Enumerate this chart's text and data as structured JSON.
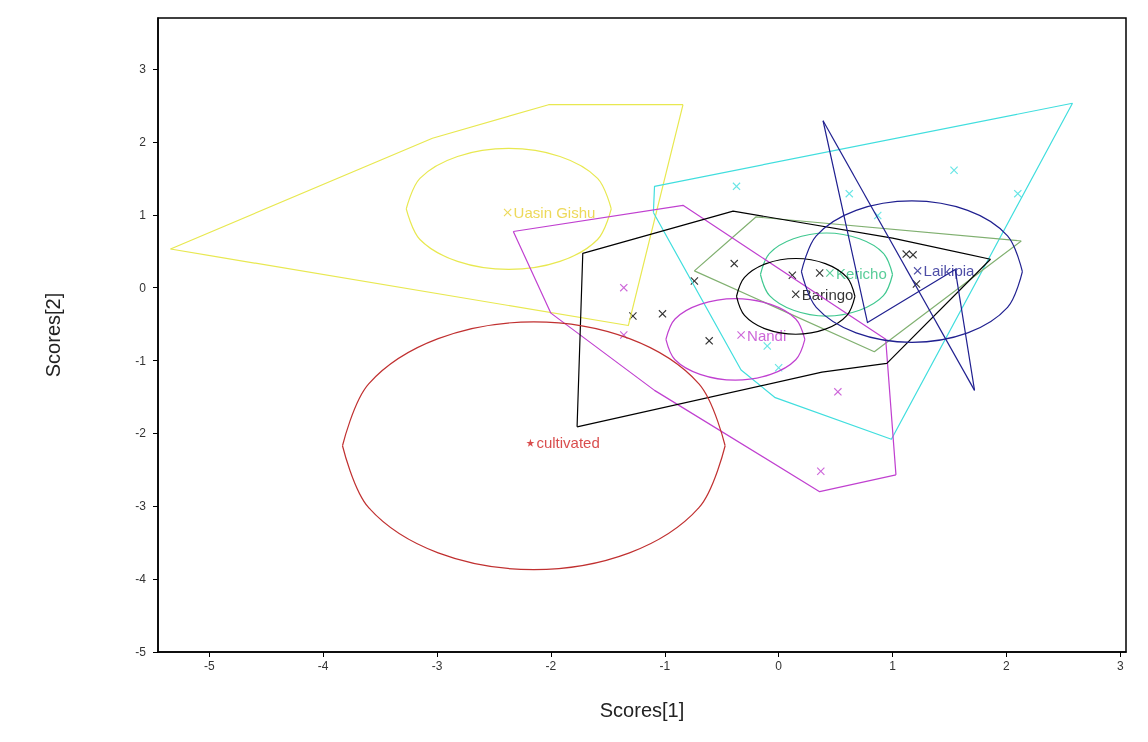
{
  "chart_data": {
    "type": "scatter",
    "xlabel": "Scores[1]",
    "ylabel": "Scores[2]",
    "xlim": [
      -5.45,
      3.05
    ],
    "ylim": [
      -5,
      3.7
    ],
    "xticks": [
      -5,
      -4,
      -3,
      -2,
      -1,
      0,
      1,
      2,
      3
    ],
    "yticks": [
      -5,
      -4,
      -3,
      -2,
      -1,
      0,
      1,
      2,
      3
    ],
    "grid": false,
    "legend": false,
    "series": [
      {
        "type": "line",
        "color": "#e8e850",
        "marker": "none",
        "x": [
          -5.34,
          -3.04,
          -2.02,
          -0.84
        ],
        "values": [
          0.53,
          2.05,
          2.51,
          2.51
        ]
      },
      {
        "type": "line",
        "color": "#e8e850",
        "marker": "none",
        "x": [
          -5.34,
          -1.32,
          -0.84
        ],
        "values": [
          0.53,
          -0.52,
          2.51
        ]
      },
      {
        "type": "line",
        "color": "#e8e850",
        "marker": "none",
        "x": [
          -3.27,
          -3.15,
          -2.82,
          -2.37,
          -1.92,
          -1.59,
          -1.47,
          null,
          -3.27,
          -3.15,
          -2.82,
          -2.37,
          -1.92,
          -1.59,
          -1.47
        ],
        "values": [
          1.08,
          1.5,
          1.8,
          1.91,
          1.8,
          1.5,
          1.08,
          null,
          1.08,
          0.66,
          0.36,
          0.25,
          0.36,
          0.66,
          1.08
        ]
      },
      {
        "name": "Uasin Gishu",
        "color": "#e8d030",
        "marker": "cross",
        "x": [
          -2.38
        ],
        "values": [
          1.03
        ]
      },
      {
        "type": "line",
        "color": "#40dede",
        "marker": "none",
        "x": [
          -1.1,
          -1.09,
          2.58
        ],
        "values": [
          1.03,
          1.39,
          2.53
        ]
      },
      {
        "type": "line",
        "color": "#40dede",
        "marker": "none",
        "x": [
          -1.1,
          -0.33,
          -0.03,
          0.99,
          2.58
        ],
        "values": [
          1.03,
          -1.13,
          -1.51,
          -2.08,
          2.53
        ]
      },
      {
        "color": "#40dede",
        "marker": "cross",
        "x": [
          -0.37,
          1.54,
          2.1,
          0.62,
          0.87,
          -0.1,
          0.0
        ],
        "values": [
          1.39,
          1.61,
          1.29,
          1.29,
          0.99,
          -0.8,
          -1.1
        ]
      },
      {
        "type": "line",
        "color": "#80b070",
        "marker": "none",
        "x": [
          -0.74,
          -0.2,
          2.13
        ],
        "values": [
          0.23,
          0.97,
          0.64
        ]
      },
      {
        "type": "line",
        "color": "#80b070",
        "marker": "none",
        "x": [
          -0.74,
          0.84,
          2.13
        ],
        "values": [
          0.23,
          -0.88,
          0.64
        ]
      },
      {
        "type": "line",
        "color": "#40c890",
        "marker": "none",
        "x": [
          -0.16,
          -0.08,
          0.13,
          0.42,
          0.71,
          0.92,
          1.0,
          null,
          -0.16,
          -0.08,
          0.13,
          0.42,
          0.71,
          0.92,
          1.0
        ],
        "values": [
          0.18,
          0.47,
          0.67,
          0.75,
          0.67,
          0.47,
          0.18,
          null,
          0.18,
          -0.11,
          -0.31,
          -0.39,
          -0.31,
          -0.11,
          0.18
        ]
      },
      {
        "name": "Kericho",
        "color": "#30c080",
        "marker": "cross",
        "x": [
          0.45
        ],
        "values": [
          0.2
        ]
      },
      {
        "type": "line",
        "color": "#c040d0",
        "marker": "none",
        "x": [
          -2.33,
          -0.84,
          0.94,
          1.03
        ],
        "values": [
          0.77,
          1.13,
          -0.71,
          -2.57
        ]
      },
      {
        "type": "line",
        "color": "#c040d0",
        "marker": "none",
        "x": [
          -2.33,
          -2.0,
          -1.09,
          0.36,
          1.03
        ],
        "values": [
          0.77,
          -0.35,
          -1.41,
          -2.8,
          -2.57
        ]
      },
      {
        "type": "line",
        "color": "#c040d0",
        "marker": "none",
        "x": [
          -0.99,
          -0.91,
          -0.69,
          -0.38,
          -0.07,
          0.15,
          0.23,
          null,
          -0.99,
          -0.91,
          -0.69,
          -0.38,
          -0.07,
          0.15,
          0.23
        ],
        "values": [
          -0.71,
          -0.43,
          -0.23,
          -0.15,
          -0.23,
          -0.43,
          -0.71,
          null,
          -0.71,
          -0.99,
          -1.19,
          -1.27,
          -1.19,
          -0.99,
          -0.71
        ]
      },
      {
        "color": "#c040d0",
        "marker": "cross",
        "x": [
          -1.36,
          0.37,
          0.52,
          -1.36
        ],
        "values": [
          0.0,
          -2.52,
          -1.43,
          -0.65
        ]
      },
      {
        "name": "Nandi",
        "color": "#c040d0",
        "marker": "cross",
        "x": [
          -0.33
        ],
        "values": [
          -0.65
        ]
      },
      {
        "type": "line",
        "color": "#000000",
        "marker": "none",
        "x": [
          -1.77,
          -1.72,
          -0.4,
          1.0,
          1.86
        ],
        "values": [
          -1.91,
          0.47,
          1.05,
          0.68,
          0.39
        ]
      },
      {
        "type": "line",
        "color": "#000000",
        "marker": "none",
        "x": [
          -1.77,
          0.38,
          0.95,
          1.86
        ],
        "values": [
          -1.91,
          -1.16,
          -1.04,
          0.39
        ]
      },
      {
        "type": "line",
        "color": "#000000",
        "marker": "none",
        "x": [
          -0.37,
          -0.3,
          -0.11,
          0.15,
          0.41,
          0.6,
          0.67,
          null,
          -0.37,
          -0.3,
          -0.11,
          0.15,
          0.41,
          0.6,
          0.67
        ],
        "values": [
          -0.12,
          0.14,
          0.33,
          0.4,
          0.33,
          0.14,
          -0.12,
          null,
          -0.12,
          -0.38,
          -0.57,
          -0.64,
          -0.57,
          -0.38,
          -0.12
        ]
      },
      {
        "color": "#000000",
        "marker": "cross",
        "x": [
          -0.39,
          -0.74,
          -1.28,
          -1.02,
          -0.61,
          0.36,
          1.21,
          1.12,
          1.18,
          0.12
        ],
        "values": [
          0.33,
          0.09,
          -0.39,
          -0.36,
          -0.73,
          0.2,
          0.05,
          0.46,
          0.45,
          0.17
        ]
      },
      {
        "name": "Baringo",
        "color": "#000000",
        "marker": "cross",
        "x": [
          0.15
        ],
        "values": [
          -0.09
        ]
      },
      {
        "type": "line",
        "color": "#202090",
        "marker": "none",
        "x": [
          0.39,
          1.72
        ],
        "values": [
          2.29,
          -1.41
        ]
      },
      {
        "type": "line",
        "color": "#202090",
        "marker": "none",
        "x": [
          0.39,
          0.78,
          1.55,
          1.72
        ],
        "values": [
          2.29,
          -0.48,
          0.25,
          -1.41
        ]
      },
      {
        "type": "line",
        "color": "#202090",
        "marker": "none",
        "x": [
          0.2,
          0.33,
          0.68,
          1.17,
          1.66,
          2.01,
          2.14,
          null,
          0.2,
          0.33,
          0.68,
          1.17,
          1.66,
          2.01,
          2.14
        ],
        "values": [
          0.22,
          0.71,
          1.06,
          1.19,
          1.06,
          0.71,
          0.22,
          null,
          0.22,
          -0.27,
          -0.62,
          -0.75,
          -0.62,
          -0.27,
          0.22
        ]
      },
      {
        "name": "Laikipia",
        "color": "#202090",
        "marker": "cross",
        "x": [
          1.22
        ],
        "values": [
          0.23
        ]
      },
      {
        "type": "line",
        "color": "#c03030",
        "marker": "none",
        "x": [
          -3.83,
          -3.6,
          -2.99,
          -2.15,
          -1.31,
          -0.7,
          -0.47,
          null,
          -3.83,
          -3.6,
          -2.99,
          -2.15,
          -1.31,
          -0.7,
          -0.47
        ],
        "values": [
          -2.17,
          -1.32,
          -0.7,
          -0.47,
          -0.7,
          -1.32,
          -2.17,
          null,
          -2.17,
          -3.02,
          -3.64,
          -3.87,
          -3.64,
          -3.02,
          -2.17
        ]
      },
      {
        "name": "cultivated",
        "color": "#d02020",
        "marker": "star",
        "x": [
          -2.18
        ],
        "values": [
          -2.13
        ]
      }
    ]
  }
}
